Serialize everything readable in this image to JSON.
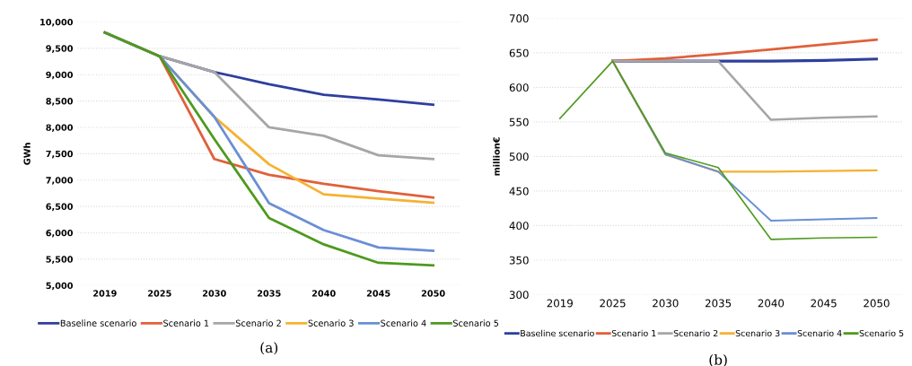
{
  "chart_data": [
    {
      "type": "line",
      "ylabel": "GWh",
      "categories": [
        "2019",
        "2025",
        "2030",
        "2035",
        "2040",
        "2045",
        "2050"
      ],
      "ylim": [
        5000,
        10000
      ],
      "yticks": [
        {
          "value": 5000,
          "label": "5,000"
        },
        {
          "value": 5500,
          "label": "5,500"
        },
        {
          "value": 6000,
          "label": "6,000"
        },
        {
          "value": 6500,
          "label": "6,500"
        },
        {
          "value": 7000,
          "label": "7,000"
        },
        {
          "value": 7500,
          "label": "7,500"
        },
        {
          "value": 8000,
          "label": "8,000"
        },
        {
          "value": 8500,
          "label": "8,500"
        },
        {
          "value": 9000,
          "label": "9,000"
        },
        {
          "value": 9500,
          "label": "9,500"
        },
        {
          "value": 10000,
          "label": "10,000"
        }
      ],
      "grid": "y",
      "legend": "bottom",
      "annotations": [
        "(a)"
      ],
      "series": [
        {
          "name": "Baseline scenario",
          "color": "#2e3f9e",
          "values": [
            9800,
            9350,
            9050,
            8820,
            8620,
            8530,
            8430
          ]
        },
        {
          "name": "Scenario 1",
          "color": "#e0603a",
          "values": [
            9800,
            9350,
            7400,
            7100,
            6930,
            6790,
            6670
          ]
        },
        {
          "name": "Scenario 2",
          "color": "#a6a6a6",
          "values": [
            9800,
            9350,
            9050,
            8000,
            7840,
            7470,
            7400
          ]
        },
        {
          "name": "Scenario 3",
          "color": "#f5b232",
          "values": [
            9800,
            9350,
            8200,
            7300,
            6730,
            6650,
            6570
          ]
        },
        {
          "name": "Scenario 4",
          "color": "#6a8fd6",
          "values": [
            9800,
            9350,
            8200,
            6560,
            6050,
            5720,
            5660
          ]
        },
        {
          "name": "Scenario 5",
          "color": "#4e9a1e",
          "values": [
            9800,
            9350,
            7780,
            6280,
            5780,
            5430,
            5380
          ]
        }
      ]
    },
    {
      "type": "line",
      "ylabel": "million€",
      "categories": [
        "2019",
        "2025",
        "2030",
        "2035",
        "2040",
        "2045",
        "2050"
      ],
      "ylim": [
        300,
        700
      ],
      "yticks": [
        300,
        350,
        400,
        450,
        500,
        550,
        600,
        650,
        700
      ],
      "grid": "y",
      "legend": "bottom",
      "annotations": [
        "(b)"
      ],
      "series": [
        {
          "name": "Baseline scenario",
          "color": "#2e3f9e",
          "values": [
            null,
            638,
            638,
            638,
            638,
            639,
            641
          ]
        },
        {
          "name": "Scenario 1",
          "color": "#e0603a",
          "values": [
            null,
            638,
            642,
            648,
            655,
            662,
            669
          ]
        },
        {
          "name": "Scenario 2",
          "color": "#a6a6a6",
          "values": [
            null,
            638,
            638,
            638,
            553,
            556,
            558
          ]
        },
        {
          "name": "Scenario 3",
          "color": "#f5b232",
          "values": [
            null,
            638,
            503,
            478,
            478,
            479,
            480
          ]
        },
        {
          "name": "Scenario 4",
          "color": "#6a8fd6",
          "values": [
            null,
            638,
            503,
            478,
            407,
            409,
            411
          ]
        },
        {
          "name": "Scenario 5",
          "color": "#4e9a1e",
          "values": [
            555,
            638,
            505,
            484,
            380,
            382,
            383
          ]
        }
      ]
    }
  ]
}
